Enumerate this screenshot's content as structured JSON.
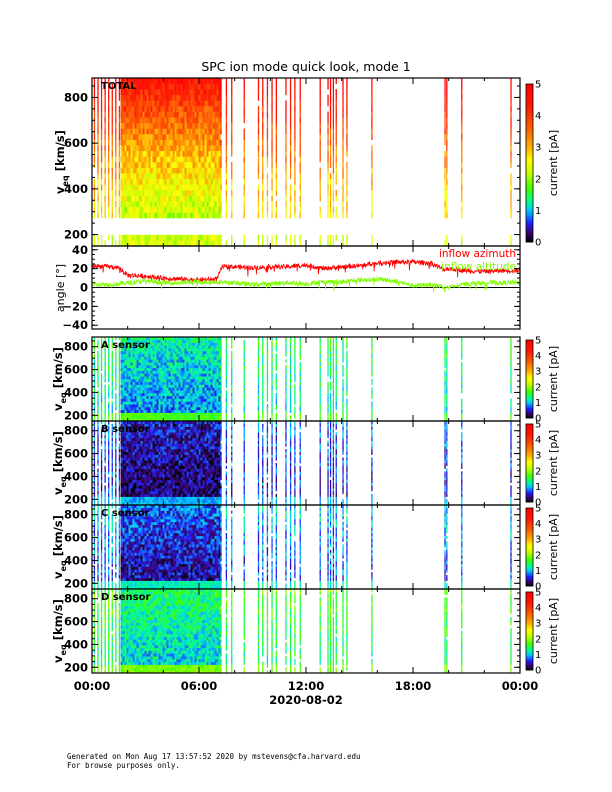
{
  "chart_data": {
    "type": "heatmap",
    "title": "SPC ion mode quick look, mode 1",
    "xlabel": "2020-08-02",
    "x_ticks": [
      "00:00",
      "06:00",
      "12:00",
      "18:00",
      "00:00"
    ],
    "x_range_hours": [
      0,
      24
    ],
    "spectrogram_ylabel": "v",
    "spectrogram_ylabel_sub": "eq",
    "spectrogram_ylabel_unit": "[km/s]",
    "velocity_range": [
      150,
      885
    ],
    "colorbar": {
      "label": "current [pA]",
      "range": [
        0,
        5
      ],
      "ticks": [
        "0",
        "1",
        "2",
        "3",
        "4",
        "5"
      ]
    },
    "observation": {
      "dense_interval_hours": [
        1.6,
        7.15
      ],
      "sparse_column_hours": [
        0.1,
        0.3,
        0.5,
        0.7,
        0.9,
        1.1,
        1.3,
        1.5,
        7.2,
        7.5,
        7.8,
        8.5,
        9.3,
        9.54,
        9.8,
        10.06,
        10.3,
        10.84,
        11.1,
        11.34,
        11.64,
        12.76,
        13.2,
        13.34,
        13.5,
        13.66,
        14.04,
        14.26,
        15.66,
        19.76,
        19.86,
        20.7,
        23.46
      ]
    },
    "panels": [
      {
        "label": "TOTAL",
        "current_low_v_pA": 2.1,
        "current_high_v_pA": 4.6,
        "gap_kms": [
          215,
          260
        ],
        "y_ticks": [
          "200",
          "400",
          "600",
          "800"
        ]
      },
      {
        "label": "A sensor",
        "current_low_v_pA": 0.9,
        "current_high_v_pA": 1.3,
        "y_ticks": [
          "200",
          "400",
          "600",
          "800"
        ]
      },
      {
        "label": "B sensor",
        "current_low_v_pA": 0.25,
        "current_high_v_pA": 0.55,
        "y_ticks": [
          "200",
          "400",
          "600",
          "800"
        ]
      },
      {
        "label": "C sensor",
        "current_low_v_pA": 0.4,
        "current_high_v_pA": 0.8,
        "y_ticks": [
          "200",
          "400",
          "600",
          "800"
        ]
      },
      {
        "label": "D sensor",
        "current_low_v_pA": 1.1,
        "current_high_v_pA": 1.5,
        "y_ticks": [
          "200",
          "400",
          "600",
          "800"
        ]
      }
    ],
    "angle_panel": {
      "ylabel": "angle [°]",
      "y_range": [
        -44,
        44
      ],
      "y_ticks": [
        "−40",
        "−20",
        "0",
        "20",
        "40"
      ],
      "y_tick_values": [
        -40,
        -20,
        0,
        20,
        40
      ],
      "series": [
        {
          "name": "inflow azimuth",
          "color": "#ff0000",
          "x": [
            0,
            1,
            1.5,
            2,
            3,
            4,
            5,
            6,
            7,
            7.3,
            8,
            9,
            10,
            11,
            12,
            13,
            14,
            15,
            16,
            17,
            18,
            19,
            19.7,
            20,
            21,
            22,
            23,
            24
          ],
          "y": [
            23,
            22,
            21,
            13,
            12,
            10,
            9,
            8,
            9,
            22,
            22,
            21,
            22,
            22,
            24,
            20,
            22,
            23,
            26,
            27,
            27,
            26,
            19,
            20,
            18,
            17,
            18,
            18
          ]
        },
        {
          "name": "inflow altitude",
          "color": "#80ff00",
          "x": [
            0,
            1,
            2,
            3,
            4,
            5,
            6,
            7,
            8,
            9,
            10,
            11,
            12,
            13,
            14,
            15,
            16,
            17,
            18,
            19,
            20,
            21,
            22,
            23,
            24
          ],
          "y": [
            4,
            3,
            5,
            7,
            5,
            5,
            6,
            6,
            5,
            3,
            4,
            5,
            4,
            6,
            6,
            8,
            9,
            7,
            2,
            3,
            0,
            4,
            5,
            5,
            5
          ]
        }
      ]
    }
  },
  "footer": {
    "line1": "Generated on Mon Aug 17 13:57:52 2020 by mstevens@cfa.harvard.edu",
    "line2": "For browse purposes only."
  }
}
